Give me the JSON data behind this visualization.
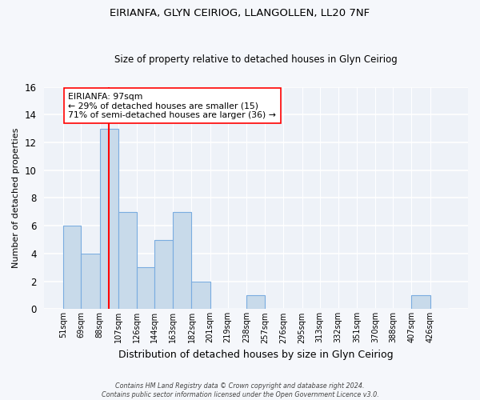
{
  "title": "EIRIANFA, GLYN CEIRIOG, LLANGOLLEN, LL20 7NF",
  "subtitle": "Size of property relative to detached houses in Glyn Ceiriog",
  "xlabel": "Distribution of detached houses by size in Glyn Ceiriog",
  "ylabel": "Number of detached properties",
  "bar_edges": [
    51,
    69,
    88,
    107,
    126,
    144,
    163,
    182,
    201,
    219,
    238,
    257,
    276,
    295,
    313,
    332,
    351,
    370,
    388,
    407,
    426
  ],
  "bar_heights": [
    6,
    4,
    13,
    7,
    3,
    5,
    7,
    2,
    0,
    0,
    1,
    0,
    0,
    0,
    0,
    0,
    0,
    0,
    0,
    1,
    0
  ],
  "bar_color": "#c8daea",
  "bar_edgecolor": "#7aace0",
  "vline_x": 97,
  "vline_color": "red",
  "ylim": [
    0,
    16
  ],
  "yticks": [
    0,
    2,
    4,
    6,
    8,
    10,
    12,
    14,
    16
  ],
  "annotation_text": "EIRIANFA: 97sqm\n← 29% of detached houses are smaller (15)\n71% of semi-detached houses are larger (36) →",
  "annotation_box_facecolor": "white",
  "annotation_box_edgecolor": "red",
  "footer_line1": "Contains HM Land Registry data © Crown copyright and database right 2024.",
  "footer_line2": "Contains public sector information licensed under the Open Government Licence v3.0.",
  "plot_bg_color": "#eef2f8",
  "fig_bg_color": "#f5f7fb",
  "grid_color": "white",
  "title_fontsize": 9.5,
  "subtitle_fontsize": 8.5
}
